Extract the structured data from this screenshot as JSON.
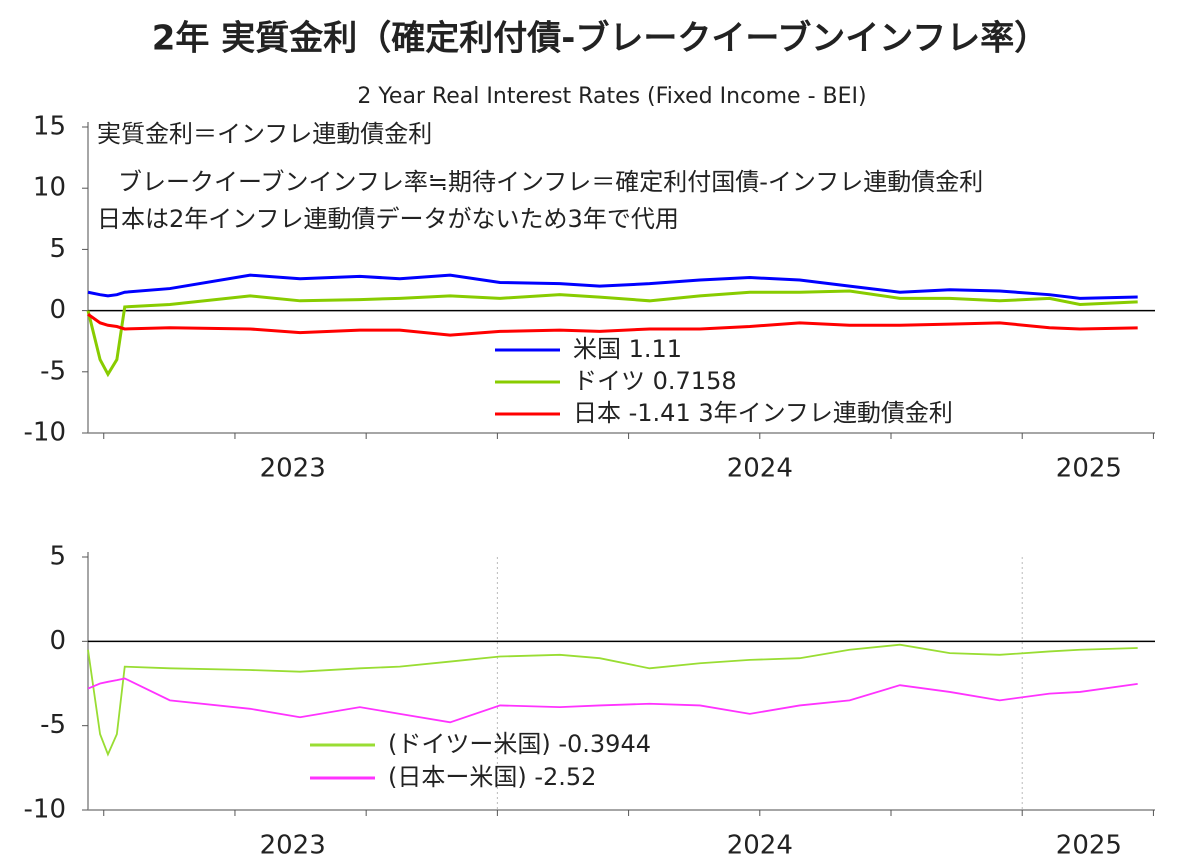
{
  "chart_data": [
    {
      "type": "line",
      "title": "2年 実質金利（確定利付債-ブレークイーブンインフレ率）",
      "subtitle": "2 Year Real Interest Rates (Fixed Income - BEI)",
      "annotations": [
        "実質金利＝インフレ連動債金利",
        "ブレークイーブンインフレ率≒期待インフレ＝確定利付国債-インフレ連動債金利",
        "日本は2年インフレ連動債データがないため3年で代用"
      ],
      "x": [
        2023.22,
        2023.243,
        2023.258,
        2023.275,
        2023.29,
        2023.376,
        2023.529,
        2023.624,
        2023.738,
        2023.814,
        2023.91,
        2024.005,
        2024.119,
        2024.195,
        2024.29,
        2024.386,
        2024.481,
        2024.576,
        2024.671,
        2024.767,
        2024.862,
        2024.957,
        2025.052,
        2025.11,
        2025.22
      ],
      "series": [
        {
          "name": "米国 1.11",
          "color": "#0000ff",
          "values": [
            1.5,
            1.3,
            1.2,
            1.3,
            1.5,
            1.8,
            2.9,
            2.6,
            2.8,
            2.6,
            2.9,
            2.3,
            2.2,
            2.0,
            2.2,
            2.5,
            2.7,
            2.5,
            2.0,
            1.5,
            1.7,
            1.6,
            1.3,
            1.0,
            1.11
          ]
        },
        {
          "name": "ドイツ 0.7158",
          "color": "#88cc00",
          "values": [
            0,
            -4,
            -5.2,
            -4,
            0.3,
            0.5,
            1.2,
            0.8,
            0.9,
            1.0,
            1.2,
            1.0,
            1.3,
            1.1,
            0.8,
            1.2,
            1.5,
            1.5,
            1.6,
            1.0,
            1.0,
            0.8,
            1.0,
            0.5,
            0.7158
          ]
        },
        {
          "name": "日本 -1.41 3年インフレ連動債金利",
          "color": "#ff0000",
          "values": [
            -0.3,
            -1.0,
            -1.2,
            -1.3,
            -1.5,
            -1.4,
            -1.5,
            -1.8,
            -1.6,
            -1.6,
            -2.0,
            -1.7,
            -1.6,
            -1.7,
            -1.5,
            -1.5,
            -1.3,
            -1.0,
            -1.2,
            -1.2,
            -1.1,
            -1.0,
            -1.4,
            -1.5,
            -1.41
          ]
        }
      ],
      "xlim": [
        2023.22,
        2025.253
      ],
      "xticks": [
        {
          "value": 2023.61,
          "label": "2023"
        },
        {
          "value": 2024.5,
          "label": "2024"
        },
        {
          "value": 2025.127,
          "label": "2025"
        }
      ],
      "ylim": [
        -10,
        15
      ],
      "yticks": [
        -10,
        -5,
        0,
        5,
        10,
        15
      ],
      "grid": false,
      "legend": "lower center"
    },
    {
      "type": "line",
      "x": [
        2023.22,
        2023.243,
        2023.258,
        2023.275,
        2023.29,
        2023.376,
        2023.529,
        2023.624,
        2023.738,
        2023.814,
        2023.91,
        2024.005,
        2024.119,
        2024.195,
        2024.29,
        2024.386,
        2024.481,
        2024.576,
        2024.671,
        2024.767,
        2024.862,
        2024.957,
        2025.052,
        2025.11,
        2025.22
      ],
      "series": [
        {
          "name": "(ドイツー米国) -0.3944",
          "color": "#99dd33",
          "values": [
            -0.5,
            -5.5,
            -6.7,
            -5.5,
            -1.5,
            -1.6,
            -1.7,
            -1.8,
            -1.6,
            -1.5,
            -1.2,
            -0.9,
            -0.8,
            -1.0,
            -1.6,
            -1.3,
            -1.1,
            -1.0,
            -0.5,
            -0.2,
            -0.7,
            -0.8,
            -0.6,
            -0.5,
            -0.3944
          ]
        },
        {
          "name": "(日本ー米国) -2.52",
          "color": "#ff33ff",
          "values": [
            -2.8,
            -2.5,
            -2.4,
            -2.3,
            -2.2,
            -3.5,
            -4.0,
            -4.5,
            -3.9,
            -4.3,
            -4.8,
            -3.8,
            -3.9,
            -3.8,
            -3.7,
            -3.8,
            -4.3,
            -3.8,
            -3.5,
            -2.6,
            -3.0,
            -3.5,
            -3.1,
            -3.0,
            -2.52
          ]
        }
      ],
      "xlim": [
        2023.22,
        2025.253
      ],
      "xticks": [
        {
          "value": 2023.61,
          "label": "2023"
        },
        {
          "value": 2024.5,
          "label": "2024"
        },
        {
          "value": 2025.127,
          "label": "2025"
        }
      ],
      "ylim": [
        -10,
        5
      ],
      "yticks": [
        -10,
        -5,
        0,
        5
      ],
      "grid": true,
      "legend": "lower center"
    }
  ]
}
